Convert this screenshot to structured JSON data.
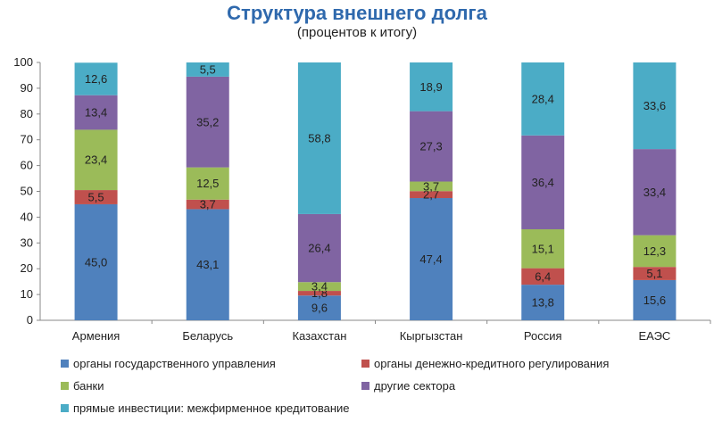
{
  "title": "Структура внешнего долга",
  "subtitle": "(процентов к итогу)",
  "chart_data": {
    "type": "bar",
    "stacked": true,
    "title": "Структура внешнего долга",
    "subtitle": "(процентов к итогу)",
    "categories": [
      "Армения",
      "Беларусь",
      "Казахстан",
      "Кыргызстан",
      "Россия",
      "ЕАЭС"
    ],
    "ylim": [
      0,
      100
    ],
    "yticks": [
      "0",
      "10",
      "20",
      "30",
      "40",
      "50",
      "60",
      "70",
      "80",
      "90",
      "100"
    ],
    "grid": false,
    "legend_position": "bottom",
    "series": [
      {
        "name": "органы государственного управления",
        "color": "#4f81bd",
        "values": [
          45.0,
          43.1,
          9.6,
          47.4,
          13.8,
          15.6
        ],
        "labels": [
          "45,0",
          "43,1",
          "9,6",
          "47,4",
          "13,8",
          "15,6"
        ]
      },
      {
        "name": "органы денежно-кредитного регулирования",
        "color": "#c0504d",
        "values": [
          5.5,
          3.7,
          1.8,
          2.7,
          6.4,
          5.1
        ],
        "labels": [
          "5,5",
          "3,7",
          "1,8",
          "2,7",
          "6,4",
          "5,1"
        ]
      },
      {
        "name": "банки",
        "color": "#9bbb59",
        "values": [
          23.4,
          12.5,
          3.4,
          3.7,
          15.1,
          12.3
        ],
        "labels": [
          "23,4",
          "12,5",
          "3,4",
          "3,7",
          "15,1",
          "12,3"
        ]
      },
      {
        "name": "другие сектора",
        "color": "#8064a2",
        "values": [
          13.4,
          35.2,
          26.4,
          27.3,
          36.4,
          33.4
        ],
        "labels": [
          "13,4",
          "35,2",
          "26,4",
          "27,3",
          "36,4",
          "33,4"
        ]
      },
      {
        "name": "прямые инвестиции: межфирменное кредитование",
        "color": "#4bacc6",
        "values": [
          12.6,
          5.5,
          58.8,
          18.9,
          28.4,
          33.6
        ],
        "labels": [
          "12,6",
          "5,5",
          "58,8",
          "18,9",
          "28,4",
          "33,6"
        ]
      }
    ]
  }
}
